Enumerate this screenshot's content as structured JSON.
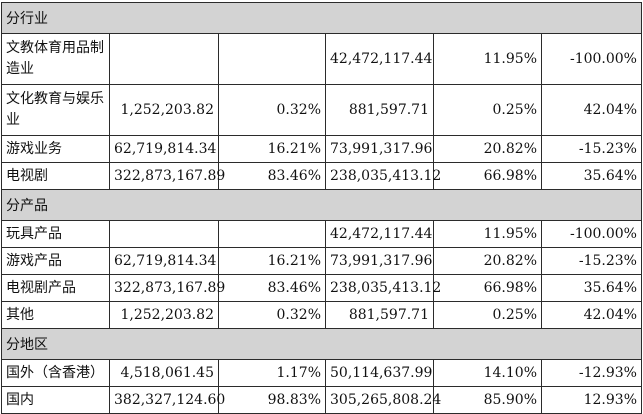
{
  "sections": [
    {
      "title": "分行业",
      "rows": [
        {
          "name": "文教体育用品制造业",
          "cur_amount": "",
          "cur_pct": "",
          "prev_amount": "42,472,117.44",
          "prev_pct": "11.95%",
          "change": "-100.00%"
        },
        {
          "name": "文化教育与娱乐业",
          "cur_amount": "1,252,203.82",
          "cur_pct": "0.32%",
          "prev_amount": "881,597.71",
          "prev_pct": "0.25%",
          "change": "42.04%"
        },
        {
          "name": "游戏业务",
          "cur_amount": "62,719,814.34",
          "cur_pct": "16.21%",
          "prev_amount": "73,991,317.96",
          "prev_pct": "20.82%",
          "change": "-15.23%"
        },
        {
          "name": "电视剧",
          "cur_amount": "322,873,167.89",
          "cur_pct": "83.46%",
          "prev_amount": "238,035,413.12",
          "prev_pct": "66.98%",
          "change": "35.64%"
        }
      ]
    },
    {
      "title": "分产品",
      "rows": [
        {
          "name": "玩具产品",
          "cur_amount": "",
          "cur_pct": "",
          "prev_amount": "42,472,117.44",
          "prev_pct": "11.95%",
          "change": "-100.00%"
        },
        {
          "name": "游戏产品",
          "cur_amount": "62,719,814.34",
          "cur_pct": "16.21%",
          "prev_amount": "73,991,317.96",
          "prev_pct": "20.82%",
          "change": "-15.23%"
        },
        {
          "name": "电视剧产品",
          "cur_amount": "322,873,167.89",
          "cur_pct": "83.46%",
          "prev_amount": "238,035,413.12",
          "prev_pct": "66.98%",
          "change": "35.64%"
        },
        {
          "name": "其他",
          "cur_amount": "1,252,203.82",
          "cur_pct": "0.32%",
          "prev_amount": "881,597.71",
          "prev_pct": "0.25%",
          "change": "42.04%"
        }
      ]
    },
    {
      "title": "分地区",
      "rows": [
        {
          "name": "国外（含香港）",
          "cur_amount": "4,518,061.45",
          "cur_pct": "1.17%",
          "prev_amount": "50,114,637.99",
          "prev_pct": "14.10%",
          "change": "-12.93%"
        },
        {
          "name": "国内",
          "cur_amount": "382,327,124.60",
          "cur_pct": "98.83%",
          "prev_amount": "305,265,808.24",
          "prev_pct": "85.90%",
          "change": "12.93%"
        }
      ]
    }
  ]
}
